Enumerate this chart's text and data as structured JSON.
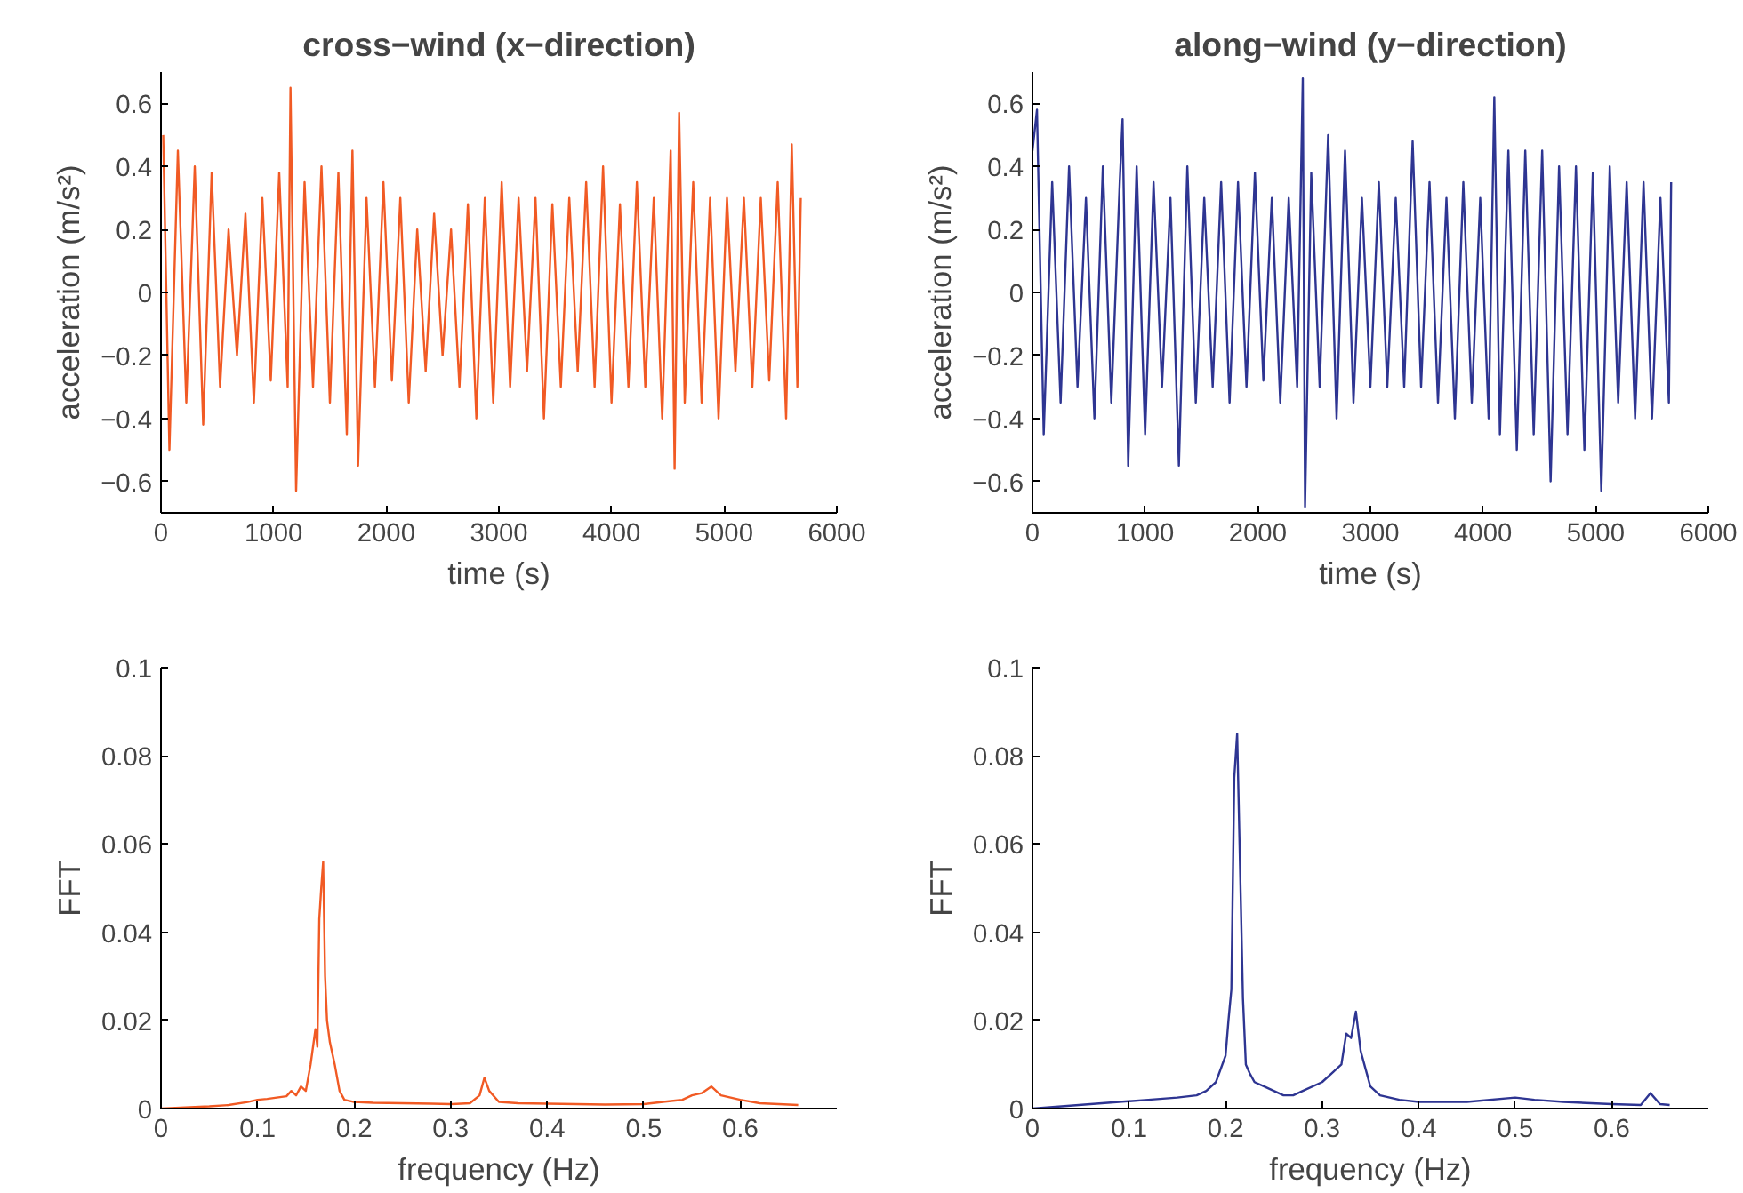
{
  "chart_data": [
    {
      "type": "line",
      "title": "cross−wind (x−direction)",
      "xlabel": "time (s)",
      "ylabel": "acceleration (m/s²)",
      "xlim": [
        0,
        6000
      ],
      "ylim": [
        -0.7,
        0.7
      ],
      "xticks": [
        0,
        1000,
        2000,
        3000,
        4000,
        5000,
        6000
      ],
      "yticks": [
        -0.6,
        -0.4,
        -0.2,
        0,
        0.2,
        0.4,
        0.6
      ],
      "grid": false,
      "series": [
        {
          "color": "#f15a24",
          "x": [
            20,
            75,
            150,
            225,
            300,
            375,
            450,
            525,
            600,
            675,
            750,
            825,
            900,
            975,
            1050,
            1125,
            1150,
            1200,
            1275,
            1350,
            1425,
            1500,
            1575,
            1650,
            1700,
            1750,
            1825,
            1900,
            1975,
            2050,
            2125,
            2200,
            2275,
            2350,
            2425,
            2500,
            2575,
            2650,
            2725,
            2800,
            2875,
            2950,
            3025,
            3100,
            3175,
            3250,
            3325,
            3400,
            3475,
            3550,
            3625,
            3700,
            3775,
            3850,
            3925,
            4000,
            4075,
            4150,
            4225,
            4300,
            4375,
            4450,
            4525,
            4560,
            4600,
            4650,
            4725,
            4800,
            4875,
            4950,
            5025,
            5100,
            5175,
            5250,
            5325,
            5400,
            5475,
            5550,
            5600,
            5650,
            5680
          ],
          "values": [
            0.5,
            -0.5,
            0.45,
            -0.35,
            0.4,
            -0.42,
            0.38,
            -0.3,
            0.2,
            -0.2,
            0.25,
            -0.35,
            0.3,
            -0.28,
            0.38,
            -0.3,
            0.65,
            -0.63,
            0.35,
            -0.3,
            0.4,
            -0.35,
            0.38,
            -0.45,
            0.45,
            -0.55,
            0.3,
            -0.3,
            0.35,
            -0.28,
            0.3,
            -0.35,
            0.2,
            -0.25,
            0.25,
            -0.2,
            0.2,
            -0.3,
            0.28,
            -0.4,
            0.3,
            -0.35,
            0.35,
            -0.3,
            0.3,
            -0.25,
            0.3,
            -0.4,
            0.28,
            -0.3,
            0.3,
            -0.25,
            0.35,
            -0.3,
            0.4,
            -0.35,
            0.28,
            -0.3,
            0.35,
            -0.3,
            0.3,
            -0.4,
            0.45,
            -0.56,
            0.57,
            -0.35,
            0.35,
            -0.35,
            0.3,
            -0.4,
            0.3,
            -0.25,
            0.3,
            -0.3,
            0.3,
            -0.28,
            0.35,
            -0.4,
            0.47,
            -0.3,
            0.3
          ]
        }
      ]
    },
    {
      "type": "line",
      "title": "along−wind (y−direction)",
      "xlabel": "time (s)",
      "ylabel": "acceleration (m/s²)",
      "xlim": [
        0,
        6000
      ],
      "ylim": [
        -0.7,
        0.7
      ],
      "xticks": [
        0,
        1000,
        2000,
        3000,
        4000,
        5000,
        6000
      ],
      "yticks": [
        -0.6,
        -0.4,
        -0.2,
        0,
        0.2,
        0.4,
        0.6
      ],
      "grid": false,
      "series": [
        {
          "color": "#2e3592",
          "x": [
            0,
            40,
            100,
            175,
            250,
            325,
            400,
            475,
            550,
            625,
            700,
            775,
            800,
            850,
            925,
            1000,
            1075,
            1150,
            1225,
            1300,
            1375,
            1450,
            1525,
            1600,
            1675,
            1750,
            1825,
            1900,
            1975,
            2050,
            2125,
            2200,
            2275,
            2350,
            2400,
            2420,
            2475,
            2550,
            2625,
            2700,
            2775,
            2850,
            2925,
            3000,
            3075,
            3150,
            3225,
            3300,
            3375,
            3450,
            3525,
            3600,
            3675,
            3750,
            3825,
            3900,
            3975,
            4050,
            4100,
            4150,
            4225,
            4300,
            4375,
            4450,
            4525,
            4600,
            4675,
            4750,
            4825,
            4900,
            4975,
            5050,
            5125,
            5200,
            5275,
            5350,
            5425,
            5500,
            5575,
            5650,
            5670
          ],
          "values": [
            0.45,
            0.58,
            -0.45,
            0.35,
            -0.35,
            0.4,
            -0.3,
            0.3,
            -0.4,
            0.4,
            -0.35,
            0.35,
            0.55,
            -0.55,
            0.4,
            -0.45,
            0.35,
            -0.3,
            0.3,
            -0.55,
            0.4,
            -0.35,
            0.3,
            -0.3,
            0.35,
            -0.35,
            0.35,
            -0.3,
            0.38,
            -0.28,
            0.3,
            -0.35,
            0.3,
            -0.3,
            0.68,
            -0.68,
            0.38,
            -0.3,
            0.5,
            -0.4,
            0.45,
            -0.35,
            0.3,
            -0.3,
            0.35,
            -0.3,
            0.3,
            -0.3,
            0.48,
            -0.3,
            0.35,
            -0.35,
            0.3,
            -0.4,
            0.35,
            -0.35,
            0.3,
            -0.4,
            0.62,
            -0.45,
            0.45,
            -0.5,
            0.45,
            -0.45,
            0.45,
            -0.6,
            0.4,
            -0.45,
            0.4,
            -0.5,
            0.38,
            -0.63,
            0.4,
            -0.35,
            0.35,
            -0.4,
            0.35,
            -0.4,
            0.3,
            -0.35,
            0.35
          ]
        }
      ]
    },
    {
      "type": "line",
      "xlabel": "frequency (Hz)",
      "ylabel": "FFT",
      "xlim": [
        0,
        0.7
      ],
      "ylim": [
        0,
        0.1
      ],
      "xticks": [
        0,
        0.1,
        0.2,
        0.3,
        0.4,
        0.5,
        0.6
      ],
      "yticks": [
        0,
        0.02,
        0.04,
        0.06,
        0.08,
        0.1
      ],
      "grid": false,
      "series": [
        {
          "color": "#f15a24",
          "x": [
            0,
            0.03,
            0.05,
            0.07,
            0.09,
            0.1,
            0.11,
            0.12,
            0.13,
            0.135,
            0.14,
            0.145,
            0.15,
            0.155,
            0.16,
            0.162,
            0.164,
            0.166,
            0.168,
            0.17,
            0.172,
            0.175,
            0.18,
            0.185,
            0.19,
            0.2,
            0.22,
            0.25,
            0.28,
            0.3,
            0.32,
            0.33,
            0.335,
            0.34,
            0.35,
            0.37,
            0.4,
            0.43,
            0.46,
            0.5,
            0.52,
            0.54,
            0.55,
            0.56,
            0.57,
            0.58,
            0.6,
            0.62,
            0.64,
            0.66
          ],
          "values": [
            0,
            0.0003,
            0.0005,
            0.0008,
            0.0015,
            0.002,
            0.0022,
            0.0025,
            0.0028,
            0.004,
            0.003,
            0.005,
            0.004,
            0.01,
            0.018,
            0.014,
            0.043,
            0.05,
            0.056,
            0.03,
            0.02,
            0.015,
            0.01,
            0.004,
            0.002,
            0.0015,
            0.0013,
            0.0012,
            0.0011,
            0.001,
            0.0012,
            0.003,
            0.007,
            0.004,
            0.0015,
            0.0012,
            0.0011,
            0.001,
            0.0009,
            0.001,
            0.0015,
            0.002,
            0.003,
            0.0035,
            0.005,
            0.003,
            0.002,
            0.0012,
            0.001,
            0.0008
          ]
        }
      ]
    },
    {
      "type": "line",
      "xlabel": "frequency (Hz)",
      "ylabel": "FFT",
      "xlim": [
        0,
        0.7
      ],
      "ylim": [
        0,
        0.1
      ],
      "xticks": [
        0,
        0.1,
        0.2,
        0.3,
        0.4,
        0.5,
        0.6
      ],
      "yticks": [
        0,
        0.02,
        0.04,
        0.06,
        0.08,
        0.1
      ],
      "grid": false,
      "series": [
        {
          "color": "#2e3592",
          "x": [
            0,
            0.03,
            0.06,
            0.09,
            0.12,
            0.15,
            0.17,
            0.18,
            0.19,
            0.195,
            0.2,
            0.203,
            0.206,
            0.209,
            0.212,
            0.215,
            0.218,
            0.221,
            0.225,
            0.23,
            0.24,
            0.25,
            0.26,
            0.27,
            0.28,
            0.3,
            0.31,
            0.32,
            0.325,
            0.33,
            0.335,
            0.34,
            0.345,
            0.35,
            0.36,
            0.38,
            0.4,
            0.45,
            0.5,
            0.52,
            0.55,
            0.6,
            0.63,
            0.64,
            0.65,
            0.66
          ],
          "values": [
            0,
            0.0005,
            0.001,
            0.0015,
            0.002,
            0.0025,
            0.003,
            0.004,
            0.006,
            0.009,
            0.012,
            0.02,
            0.027,
            0.075,
            0.085,
            0.055,
            0.025,
            0.01,
            0.008,
            0.006,
            0.005,
            0.004,
            0.003,
            0.003,
            0.004,
            0.006,
            0.008,
            0.01,
            0.017,
            0.016,
            0.022,
            0.013,
            0.009,
            0.005,
            0.003,
            0.002,
            0.0015,
            0.0015,
            0.0025,
            0.002,
            0.0015,
            0.001,
            0.0008,
            0.0035,
            0.001,
            0.0008
          ]
        }
      ]
    }
  ]
}
